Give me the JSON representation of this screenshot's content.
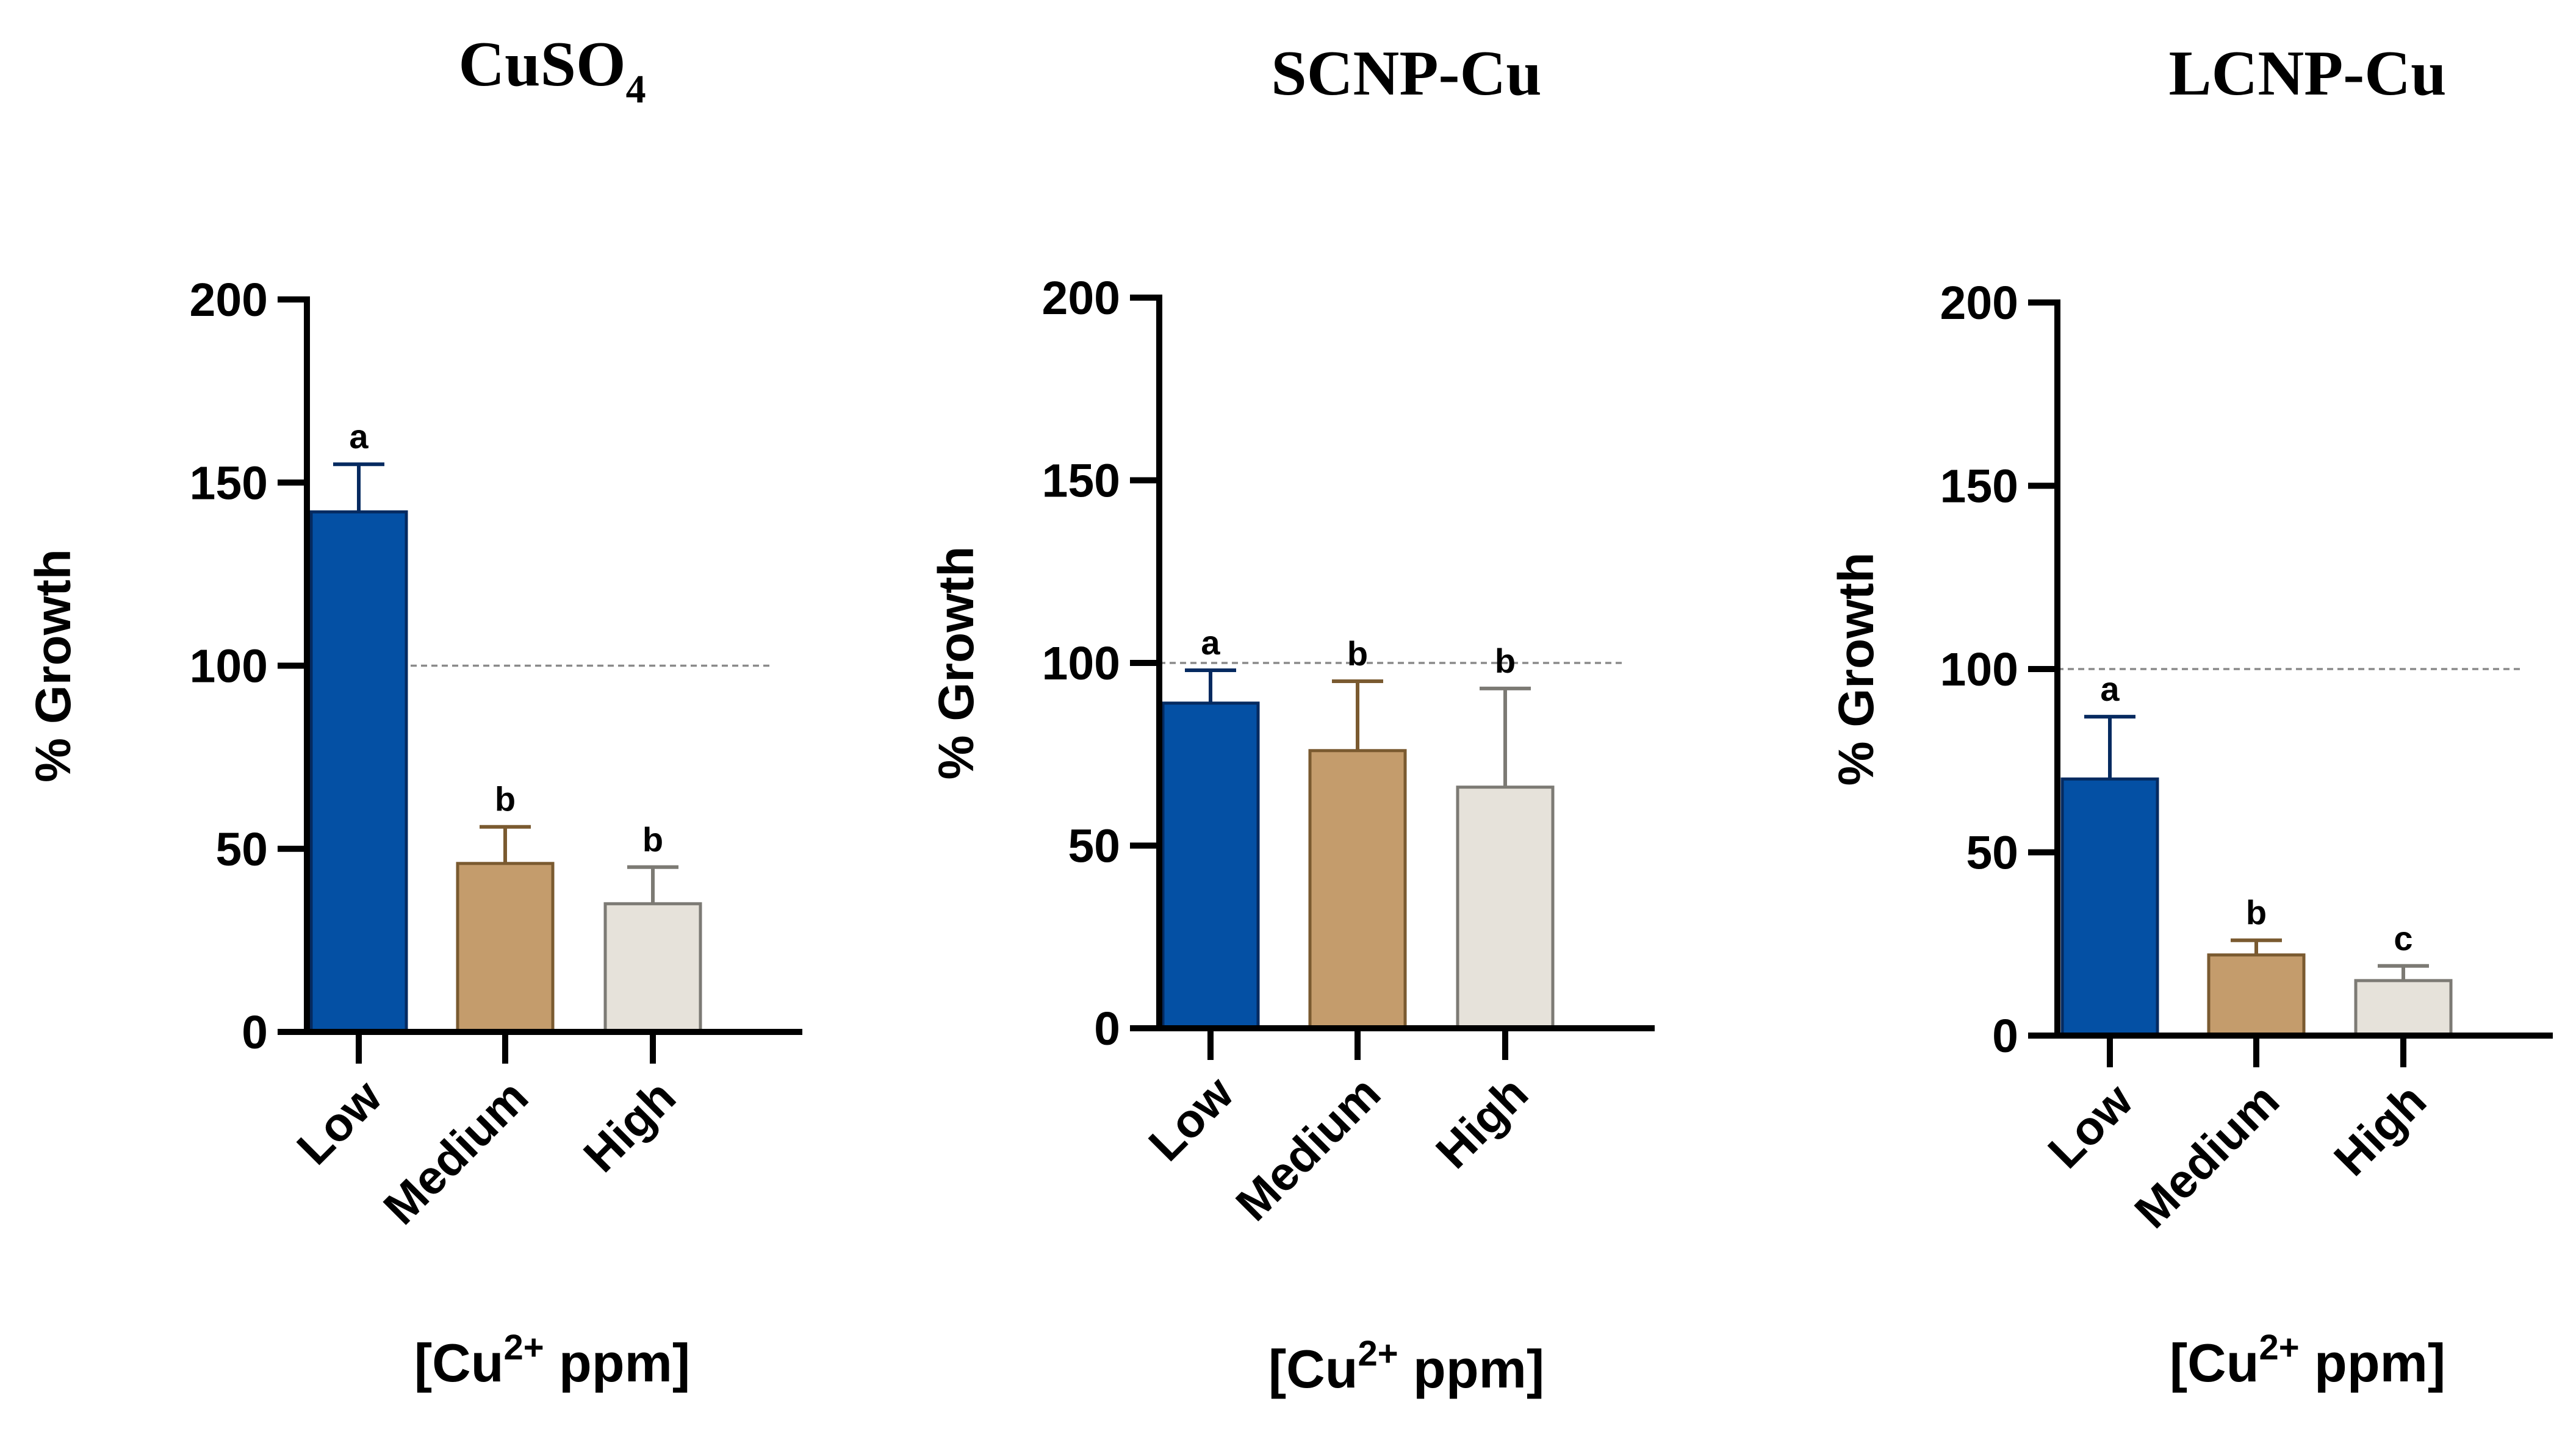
{
  "chart_data": [
    {
      "type": "bar",
      "title": {
        "main": "CuSO",
        "sub": "4"
      },
      "ylabel": "% Growth",
      "xlabel": {
        "pre": "[Cu",
        "sup": "2+",
        "post": " ppm]"
      },
      "ylim": [
        0,
        200
      ],
      "yticks": [
        0,
        50,
        100,
        150,
        200
      ],
      "reference_line": 100,
      "categories": [
        "Low",
        "Medium",
        "High"
      ],
      "values": [
        142,
        46,
        35
      ],
      "errors": [
        13,
        10,
        10
      ],
      "significance": [
        "a",
        "b",
        "b"
      ],
      "colors": {
        "fill": [
          "#0450a4",
          "#c49c6c",
          "#e6e2da"
        ],
        "stroke": [
          "#052a60",
          "#7a5a30",
          "#7c7a74"
        ]
      }
    },
    {
      "type": "bar",
      "title": {
        "main": "SCNP-Cu",
        "sub": ""
      },
      "ylabel": "% Growth",
      "xlabel": {
        "pre": "[Cu",
        "sup": "2+",
        "post": " ppm]"
      },
      "ylim": [
        0,
        200
      ],
      "yticks": [
        0,
        50,
        100,
        150,
        200
      ],
      "reference_line": 100,
      "categories": [
        "Low",
        "Medium",
        "High"
      ],
      "values": [
        89,
        76,
        66
      ],
      "errors": [
        9,
        19,
        27
      ],
      "significance": [
        "a",
        "b",
        "b"
      ],
      "colors": {
        "fill": [
          "#0450a4",
          "#c49c6c",
          "#e6e2da"
        ],
        "stroke": [
          "#052a60",
          "#7a5a30",
          "#7c7a74"
        ]
      }
    },
    {
      "type": "bar",
      "title": {
        "main": "LCNP-Cu",
        "sub": ""
      },
      "ylabel": "% Growth",
      "xlabel": {
        "pre": "[Cu",
        "sup": "2+",
        "post": " ppm]"
      },
      "ylim": [
        0,
        200
      ],
      "yticks": [
        0,
        50,
        100,
        150,
        200
      ],
      "reference_line": 100,
      "categories": [
        "Low",
        "Medium",
        "High"
      ],
      "values": [
        70,
        22,
        15
      ],
      "errors": [
        17,
        4,
        4
      ],
      "significance": [
        "a",
        "b",
        "c"
      ],
      "colors": {
        "fill": [
          "#0450a4",
          "#c49c6c",
          "#e6e2da"
        ],
        "stroke": [
          "#052a60",
          "#7a5a30",
          "#7c7a74"
        ]
      }
    }
  ]
}
